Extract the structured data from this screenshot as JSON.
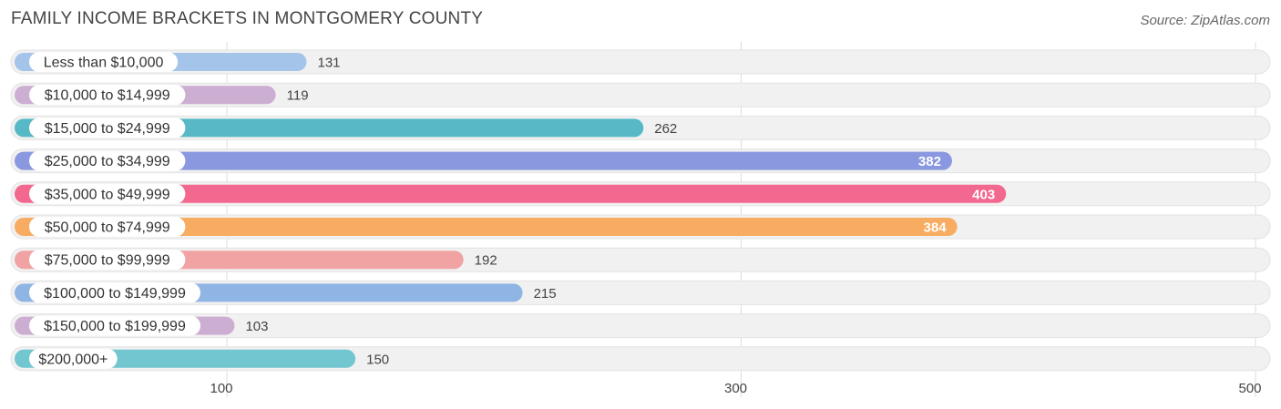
{
  "title": "FAMILY INCOME BRACKETS IN MONTGOMERY COUNTY",
  "source": "Source: ZipAtlas.com",
  "chart_data": {
    "type": "bar",
    "orientation": "horizontal",
    "title": "FAMILY INCOME BRACKETS IN MONTGOMERY COUNTY",
    "xlabel": "",
    "ylabel": "",
    "xlim": [
      -30,
      510
    ],
    "xticks": [
      100,
      300,
      500
    ],
    "grid": true,
    "categories": [
      "Less than $10,000",
      "$10,000 to $14,999",
      "$15,000 to $24,999",
      "$25,000 to $34,999",
      "$35,000 to $49,999",
      "$50,000 to $74,999",
      "$75,000 to $99,999",
      "$100,000 to $149,999",
      "$150,000 to $199,999",
      "$200,000+"
    ],
    "values": [
      131,
      119,
      262,
      382,
      403,
      384,
      192,
      215,
      103,
      150
    ],
    "colors": [
      "#a4c4ea",
      "#cdaed3",
      "#56b9c5",
      "#8a98e0",
      "#f3688f",
      "#f7ac62",
      "#f0a3a2",
      "#8fb5e5",
      "#cdaed3",
      "#72c6cf"
    ]
  }
}
